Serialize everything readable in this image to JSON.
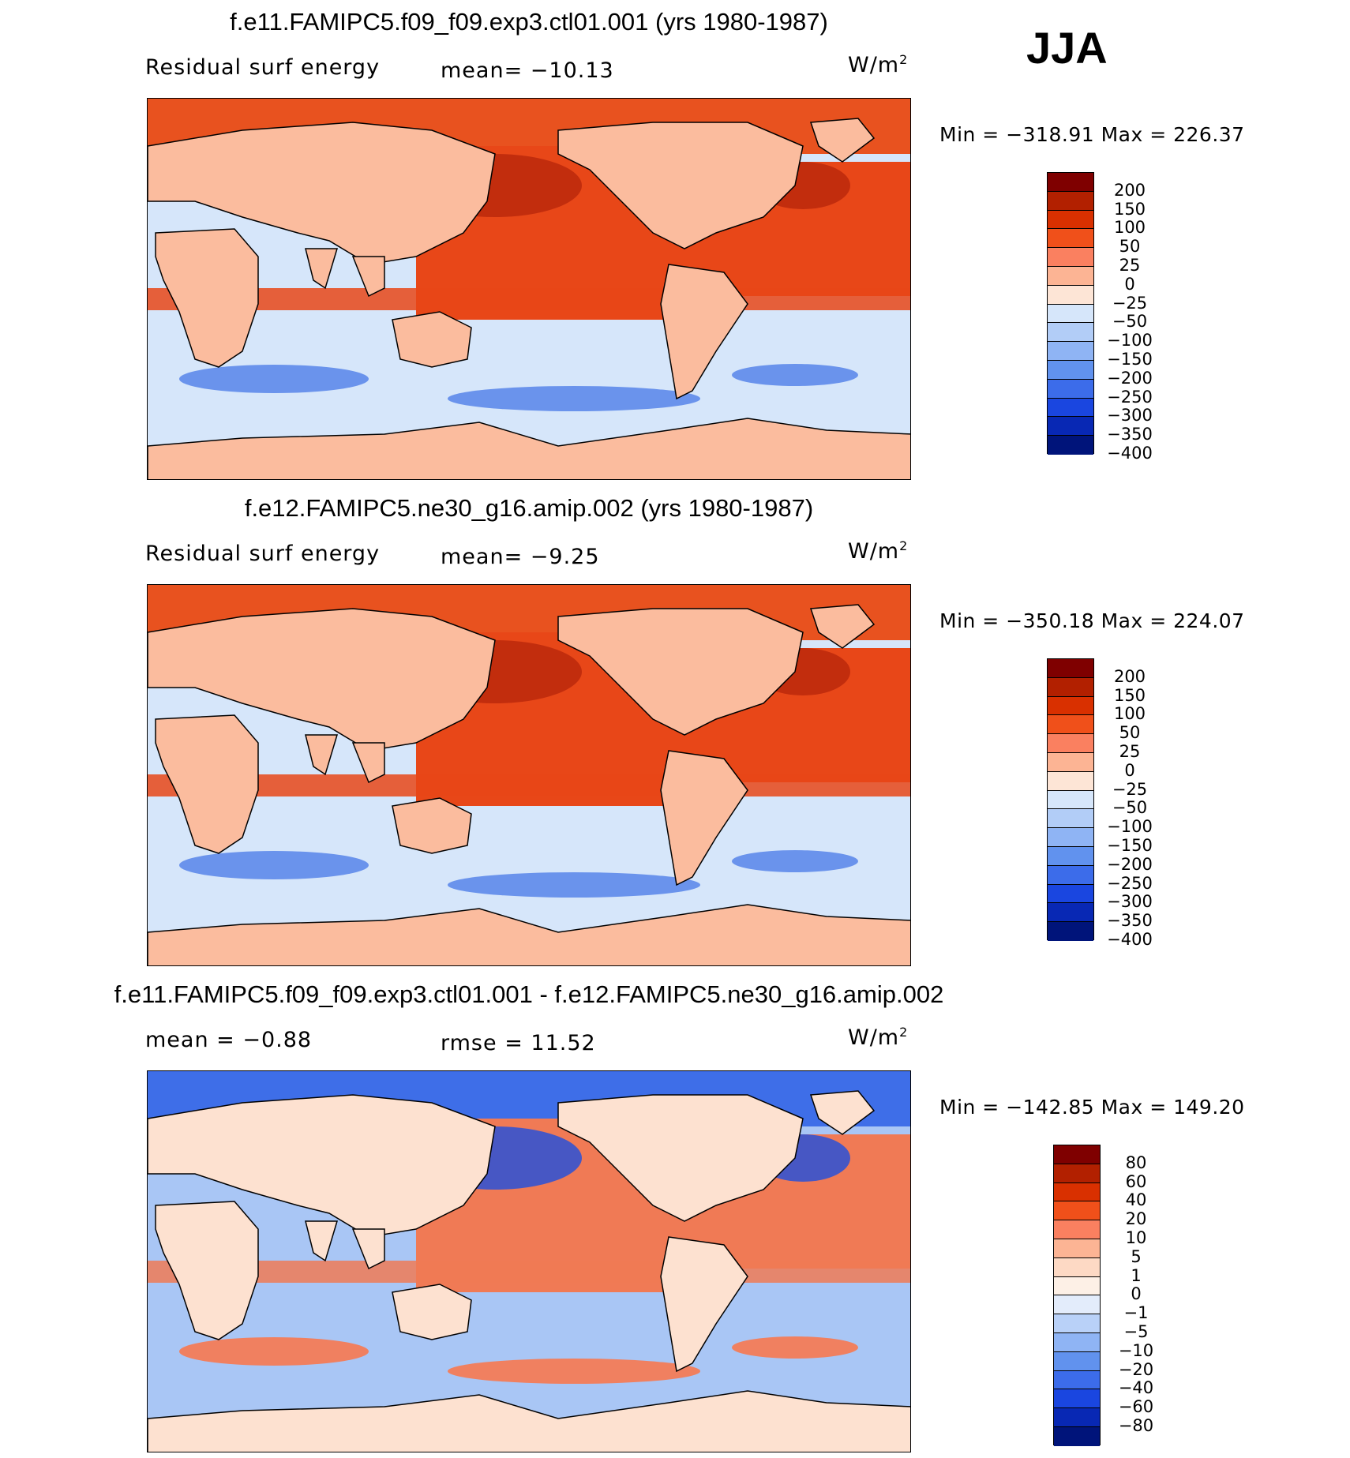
{
  "season": "JJA",
  "panels": [
    {
      "title": "f.e11.FAMIPC5.f09_f09.exp3.ctl01.001 (yrs 1980-1987)",
      "left_label": "Residual surf energy",
      "center_label": "mean=  −10.13",
      "units": "W/m",
      "units_sup": "2",
      "minmax": "Min  =  −318.91  Max  =  226.37",
      "colorbar": {
        "labels": [
          "200",
          "150",
          "100",
          "50",
          "25",
          "0",
          "−25",
          "−50",
          "−100",
          "−150",
          "−200",
          "−250",
          "−300",
          "−350",
          "−400"
        ],
        "colors": [
          "#7f0000",
          "#b22000",
          "#d93000",
          "#f0501a",
          "#fa8060",
          "#fcb494",
          "#fde5d6",
          "#d6e6fa",
          "#b2cdf7",
          "#8fb4f4",
          "#6192ee",
          "#3c6cea",
          "#1a46e0",
          "#0828b4",
          "#00147a"
        ]
      }
    },
    {
      "title": "f.e12.FAMIPC5.ne30_g16.amip.002 (yrs 1980-1987)",
      "left_label": "Residual surf energy",
      "center_label": "mean=   −9.25",
      "units": "W/m",
      "units_sup": "2",
      "minmax": "Min  =  −350.18  Max  =  224.07",
      "colorbar": {
        "labels": [
          "200",
          "150",
          "100",
          "50",
          "25",
          "0",
          "−25",
          "−50",
          "−100",
          "−150",
          "−200",
          "−250",
          "−300",
          "−350",
          "−400"
        ],
        "colors": [
          "#7f0000",
          "#b22000",
          "#d93000",
          "#f0501a",
          "#fa8060",
          "#fcb494",
          "#fde5d6",
          "#d6e6fa",
          "#b2cdf7",
          "#8fb4f4",
          "#6192ee",
          "#3c6cea",
          "#1a46e0",
          "#0828b4",
          "#00147a"
        ]
      }
    },
    {
      "title": "f.e11.FAMIPC5.f09_f09.exp3.ctl01.001 - f.e12.FAMIPC5.ne30_g16.amip.002",
      "left_label": "mean  =   −0.88",
      "center_label": "rmse  =    11.52",
      "units": "W/m",
      "units_sup": "2",
      "minmax": "Min  =  −142.85  Max  =  149.20",
      "colorbar": {
        "labels": [
          "80",
          "60",
          "40",
          "20",
          "10",
          "5",
          "1",
          "0",
          "−1",
          "−5",
          "−10",
          "−20",
          "−40",
          "−60",
          "−80"
        ],
        "colors": [
          "#7f0000",
          "#b22000",
          "#d93000",
          "#f0501a",
          "#fa8060",
          "#fcb494",
          "#fdd9c4",
          "#fdf0e6",
          "#e3ecfb",
          "#b9d1f8",
          "#8fb4f4",
          "#6192ee",
          "#3c6cea",
          "#1a46e0",
          "#0828b4",
          "#00147a"
        ]
      }
    }
  ]
}
